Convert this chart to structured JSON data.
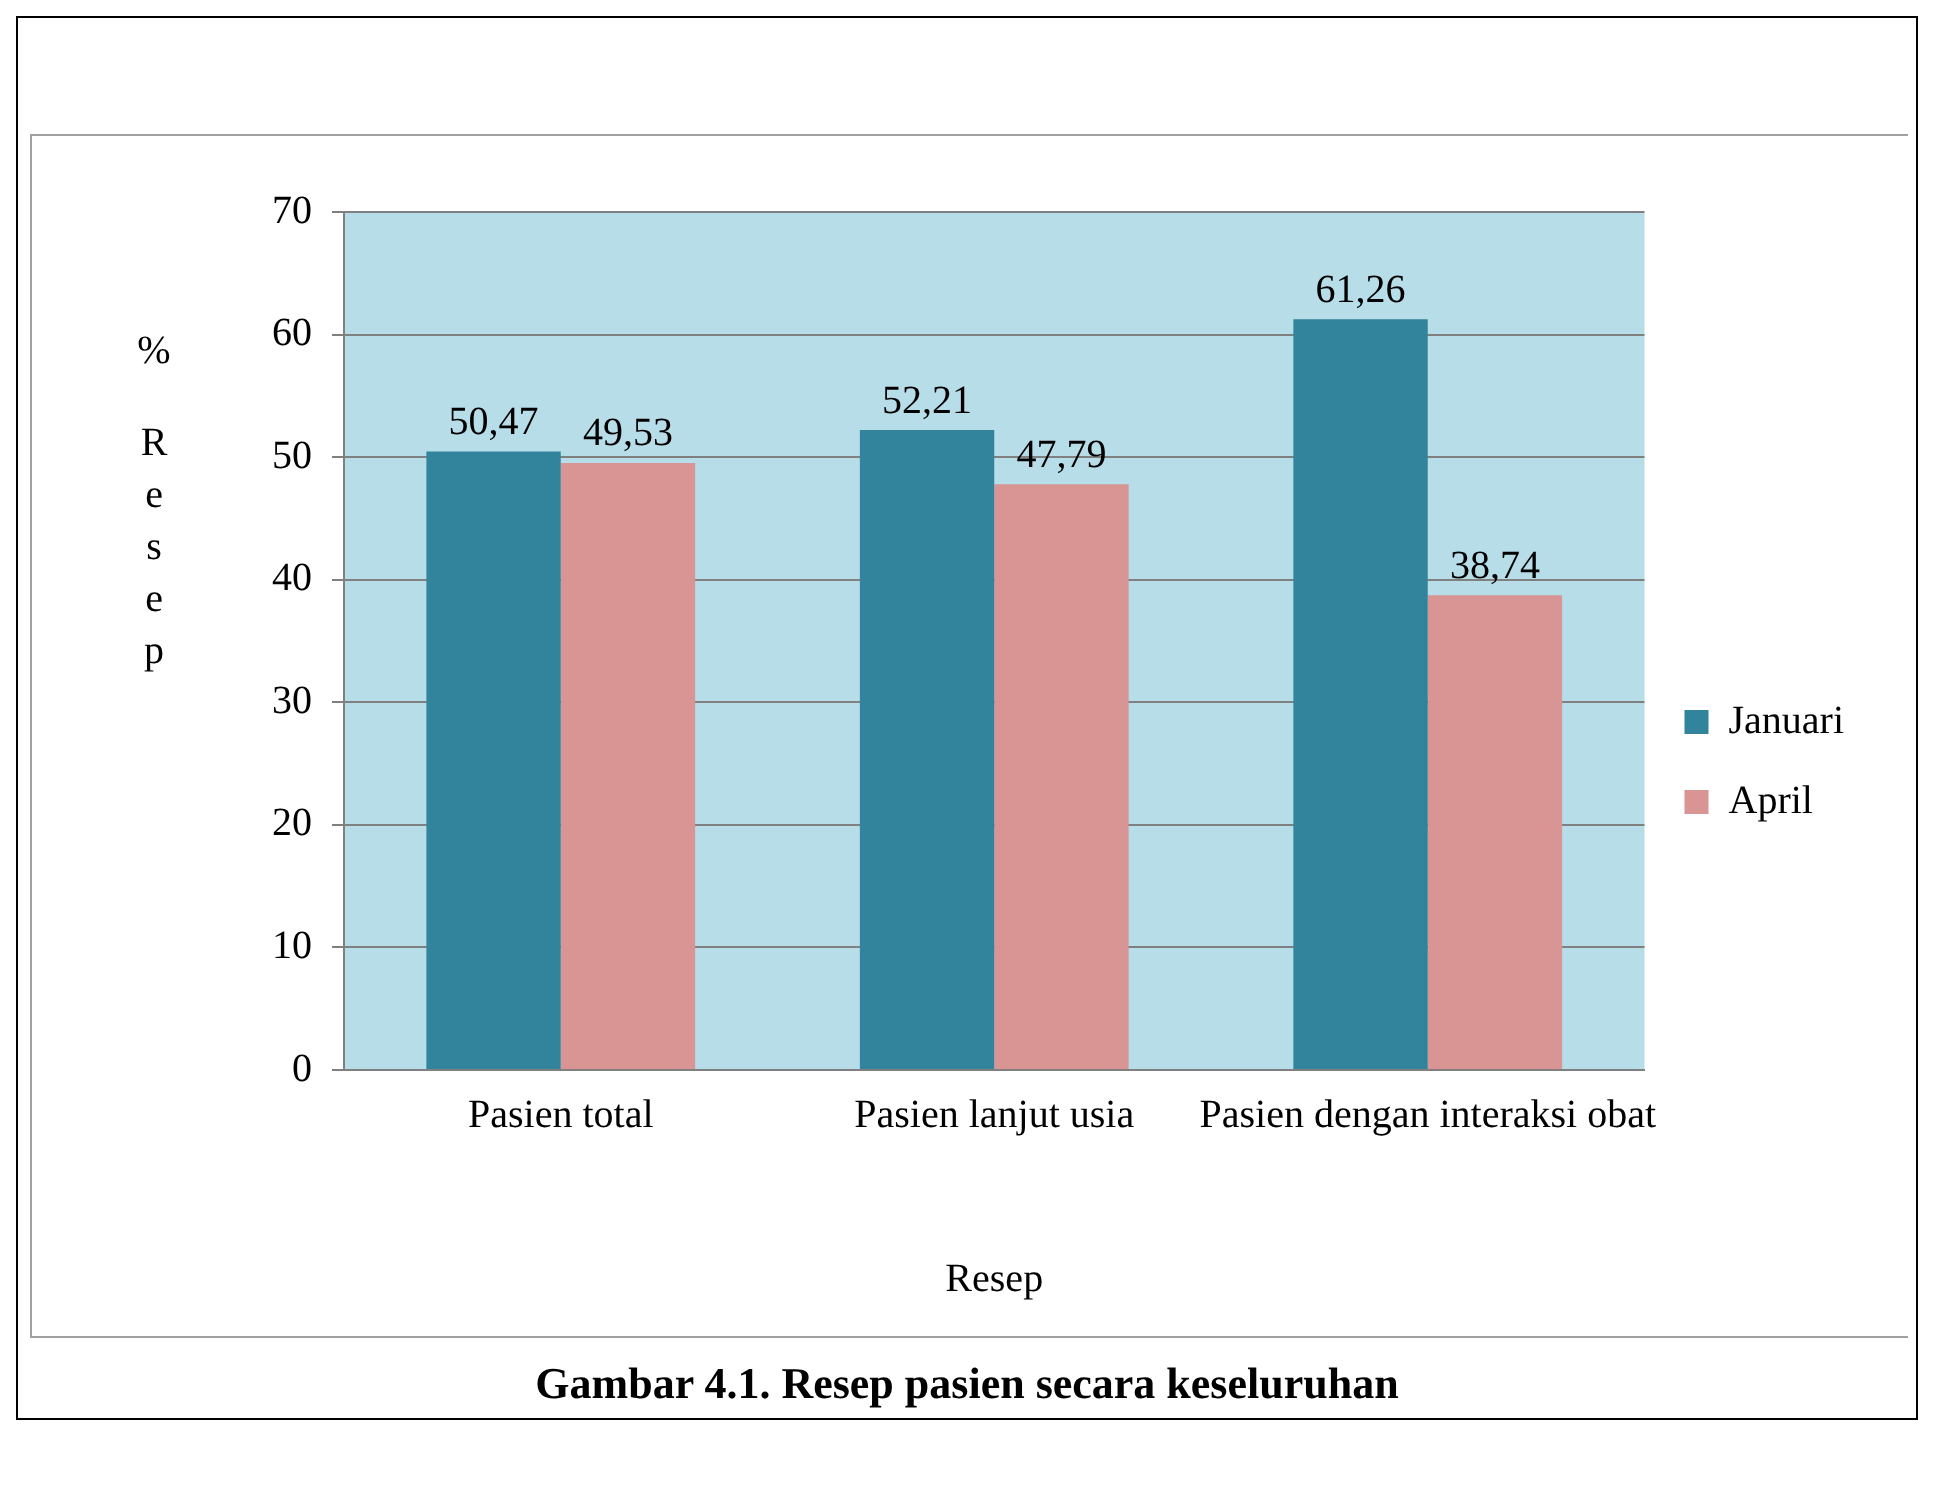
{
  "chart_data": {
    "type": "bar",
    "xlabel": "Resep",
    "ylabel": "% Resep",
    "categories": [
      "Pasien total",
      "Pasien lanjut usia",
      "Pasien dengan interaksi obat"
    ],
    "series": [
      {
        "name": "Januari",
        "color": "#31849b",
        "values": [
          50.47,
          52.21,
          61.26
        ],
        "value_labels": [
          "50,47",
          "52,21",
          "61,26"
        ]
      },
      {
        "name": "April",
        "color": "#d99594",
        "values": [
          49.53,
          47.79,
          38.74
        ],
        "value_labels": [
          "49,53",
          "47,79",
          "38,74"
        ]
      }
    ],
    "ylim": [
      0,
      70
    ],
    "yticks": [
      0,
      10,
      20,
      30,
      40,
      50,
      60,
      70
    ],
    "grid": "y",
    "legend": "right",
    "annotations": [
      "Gambar 4.1. Resep pasien secara keseluruhan"
    ]
  }
}
